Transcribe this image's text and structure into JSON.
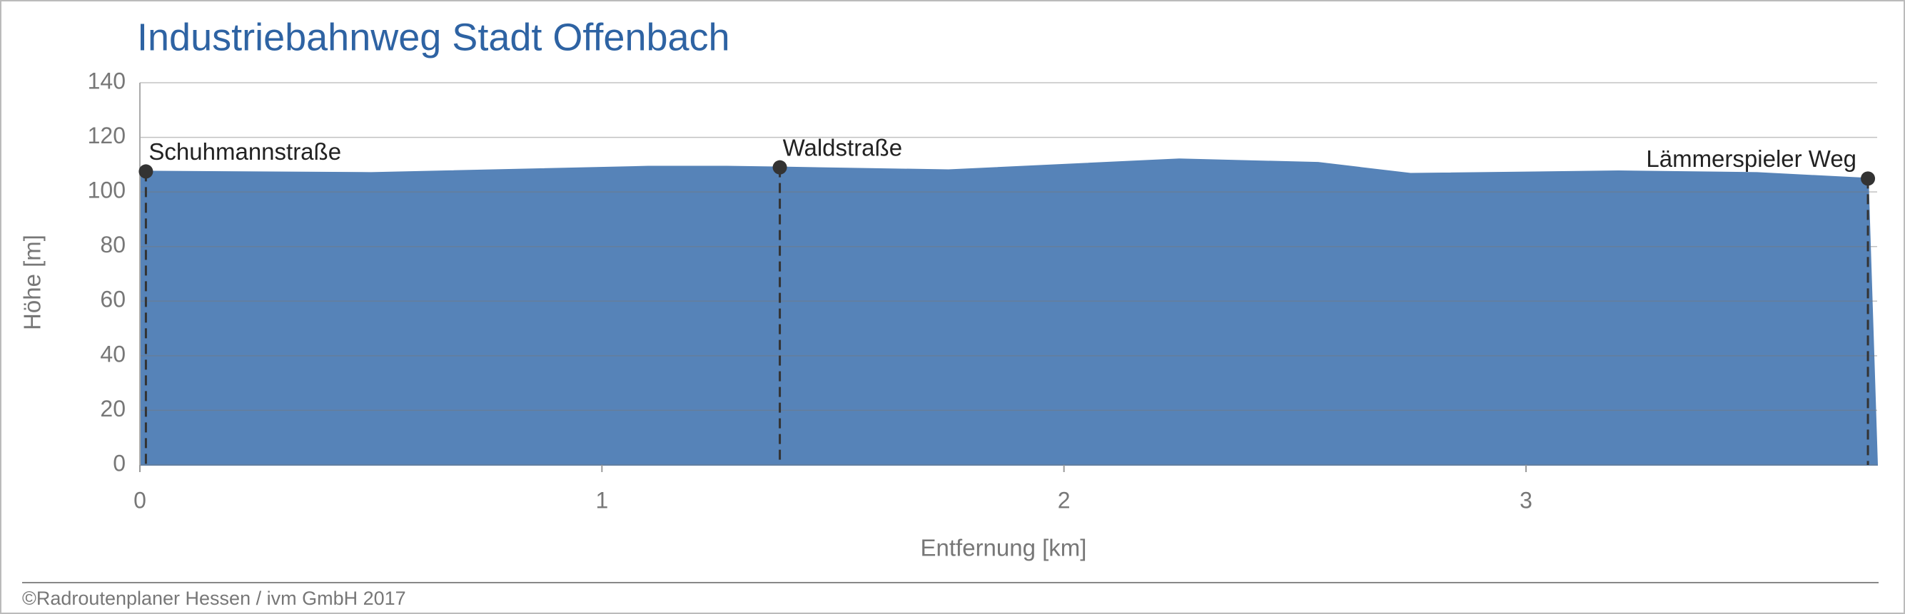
{
  "chart_data": {
    "type": "area",
    "title": "Industriebahnweg Stadt Offenbach",
    "x_label": "Entfernung [km]",
    "y_label": "Höhe [m]",
    "x": [
      0.0,
      0.5,
      1.1,
      1.27,
      1.39,
      1.75,
      2.25,
      2.55,
      2.75,
      3.2,
      3.5,
      3.74,
      3.76
    ],
    "values": [
      107.5,
      107,
      109.3,
      109.3,
      109,
      108,
      112,
      110.7,
      106.7,
      107.6,
      107,
      104.9,
      0
    ],
    "color": "#5683b8",
    "xlim": [
      0,
      3.76
    ],
    "ylim": [
      0,
      140
    ],
    "xticks": [
      0,
      1,
      2,
      3
    ],
    "yticks": [
      0,
      20,
      40,
      60,
      80,
      100,
      120,
      140
    ],
    "grid": true,
    "annotations": [
      {
        "label": "Schuhmannstraße",
        "x": 0.013,
        "y": 107.5
      },
      {
        "label": "Waldstraße",
        "x": 1.385,
        "y": 109
      },
      {
        "label": "Lämmerspieler Weg",
        "x": 3.74,
        "y": 104.9
      }
    ]
  },
  "copyright": "©Radroutenplaner Hessen / ivm GmbH 2017"
}
